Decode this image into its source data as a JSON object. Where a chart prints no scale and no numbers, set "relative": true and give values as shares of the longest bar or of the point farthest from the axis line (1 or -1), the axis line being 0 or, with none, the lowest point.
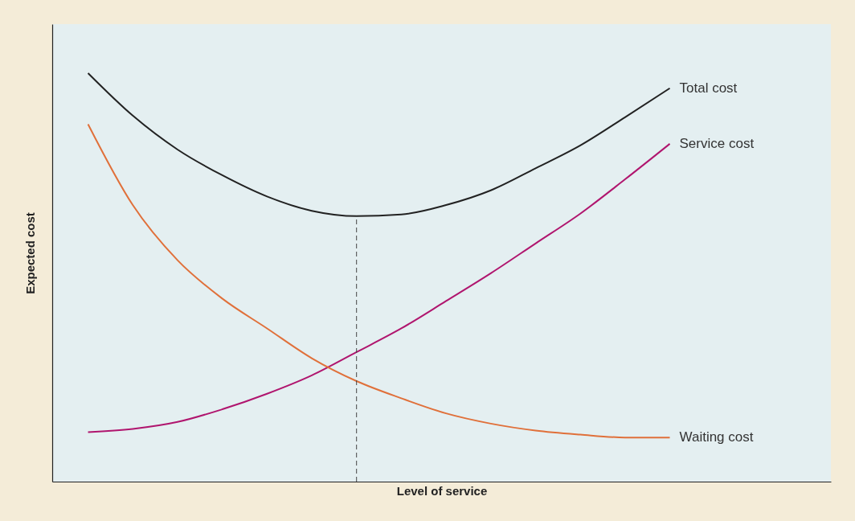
{
  "chart_data": {
    "type": "line",
    "relative": true,
    "xlabel": "Level of service",
    "ylabel": "Expected cost",
    "categories": [
      null,
      null,
      null,
      null,
      null,
      null,
      null,
      null,
      null,
      null,
      null,
      null,
      null,
      null
    ],
    "series": [
      {
        "name": "Total cost",
        "color": "#222222",
        "values": [
          1,
          0.896,
          0.813,
          0.75,
          0.698,
          0.663,
          0.65,
          0.654,
          0.677,
          0.713,
          0.767,
          0.823,
          0.892,
          0.963
        ]
      },
      {
        "name": "Service cost",
        "color": "#b0156e",
        "values": [
          0.121,
          0.129,
          0.146,
          0.177,
          0.215,
          0.26,
          0.317,
          0.375,
          0.442,
          0.51,
          0.583,
          0.656,
          0.74,
          0.827
        ]
      },
      {
        "name": "Waiting cost",
        "color": "#e0703a",
        "values": [
          0.875,
          0.677,
          0.542,
          0.448,
          0.375,
          0.302,
          0.246,
          0.204,
          0.167,
          0.142,
          0.125,
          0.115,
          0.108,
          0.108
        ]
      }
    ],
    "grid": false,
    "legend": false,
    "marker": "none",
    "line_style": "solid",
    "tick_labels": false
  }
}
